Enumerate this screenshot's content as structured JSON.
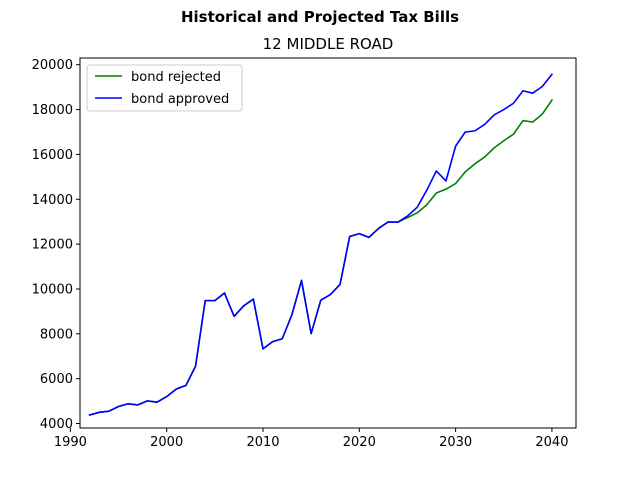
{
  "chart_data": {
    "type": "line",
    "title": "Historical and Projected Tax Bills",
    "subtitle": "12 MIDDLE ROAD",
    "xlabel": "",
    "ylabel": "",
    "xlim": [
      1991,
      2042.5
    ],
    "ylim": [
      3800,
      20300
    ],
    "xticks": [
      1990,
      2000,
      2010,
      2020,
      2030,
      2040
    ],
    "yticks": [
      4000,
      6000,
      8000,
      10000,
      12000,
      14000,
      16000,
      18000,
      20000
    ],
    "grid": false,
    "legend_position": "top-left",
    "series": [
      {
        "name": "bond rejected",
        "color": "#008000",
        "points": [
          [
            1992,
            4380
          ],
          [
            1993,
            4500
          ],
          [
            1994,
            4550
          ],
          [
            1995,
            4760
          ],
          [
            1996,
            4880
          ],
          [
            1997,
            4830
          ],
          [
            1998,
            5010
          ],
          [
            1999,
            4950
          ],
          [
            2000,
            5200
          ],
          [
            2001,
            5540
          ],
          [
            2002,
            5700
          ],
          [
            2003,
            6560
          ],
          [
            2004,
            9480
          ],
          [
            2005,
            9480
          ],
          [
            2006,
            9820
          ],
          [
            2007,
            8780
          ],
          [
            2008,
            9250
          ],
          [
            2009,
            9550
          ],
          [
            2010,
            7330
          ],
          [
            2011,
            7650
          ],
          [
            2012,
            7780
          ],
          [
            2013,
            8850
          ],
          [
            2014,
            10380
          ],
          [
            2015,
            8010
          ],
          [
            2016,
            9500
          ],
          [
            2017,
            9750
          ],
          [
            2018,
            10200
          ],
          [
            2019,
            12340
          ],
          [
            2020,
            12470
          ],
          [
            2021,
            12300
          ],
          [
            2022,
            12700
          ],
          [
            2023,
            12990
          ],
          [
            2024,
            12980
          ],
          [
            2025,
            13180
          ],
          [
            2026,
            13390
          ],
          [
            2027,
            13750
          ],
          [
            2028,
            14280
          ],
          [
            2029,
            14450
          ],
          [
            2030,
            14700
          ],
          [
            2031,
            15220
          ],
          [
            2032,
            15580
          ],
          [
            2033,
            15880
          ],
          [
            2034,
            16290
          ],
          [
            2035,
            16610
          ],
          [
            2036,
            16900
          ],
          [
            2037,
            17510
          ],
          [
            2038,
            17440
          ],
          [
            2039,
            17800
          ],
          [
            2040,
            18420
          ]
        ]
      },
      {
        "name": "bond approved",
        "color": "#0000ff",
        "points": [
          [
            1992,
            4380
          ],
          [
            1993,
            4500
          ],
          [
            1994,
            4550
          ],
          [
            1995,
            4760
          ],
          [
            1996,
            4880
          ],
          [
            1997,
            4830
          ],
          [
            1998,
            5010
          ],
          [
            1999,
            4950
          ],
          [
            2000,
            5200
          ],
          [
            2001,
            5540
          ],
          [
            2002,
            5700
          ],
          [
            2003,
            6560
          ],
          [
            2004,
            9480
          ],
          [
            2005,
            9480
          ],
          [
            2006,
            9820
          ],
          [
            2007,
            8780
          ],
          [
            2008,
            9250
          ],
          [
            2009,
            9550
          ],
          [
            2010,
            7330
          ],
          [
            2011,
            7650
          ],
          [
            2012,
            7780
          ],
          [
            2013,
            8850
          ],
          [
            2014,
            10380
          ],
          [
            2015,
            8010
          ],
          [
            2016,
            9500
          ],
          [
            2017,
            9750
          ],
          [
            2018,
            10200
          ],
          [
            2019,
            12340
          ],
          [
            2020,
            12470
          ],
          [
            2021,
            12300
          ],
          [
            2022,
            12700
          ],
          [
            2023,
            12990
          ],
          [
            2024,
            12980
          ],
          [
            2025,
            13250
          ],
          [
            2026,
            13640
          ],
          [
            2027,
            14400
          ],
          [
            2028,
            15260
          ],
          [
            2029,
            14820
          ],
          [
            2030,
            16370
          ],
          [
            2031,
            17000
          ],
          [
            2032,
            17050
          ],
          [
            2033,
            17330
          ],
          [
            2034,
            17760
          ],
          [
            2035,
            18000
          ],
          [
            2036,
            18280
          ],
          [
            2037,
            18840
          ],
          [
            2038,
            18730
          ],
          [
            2039,
            19030
          ],
          [
            2040,
            19570
          ]
        ]
      }
    ]
  }
}
